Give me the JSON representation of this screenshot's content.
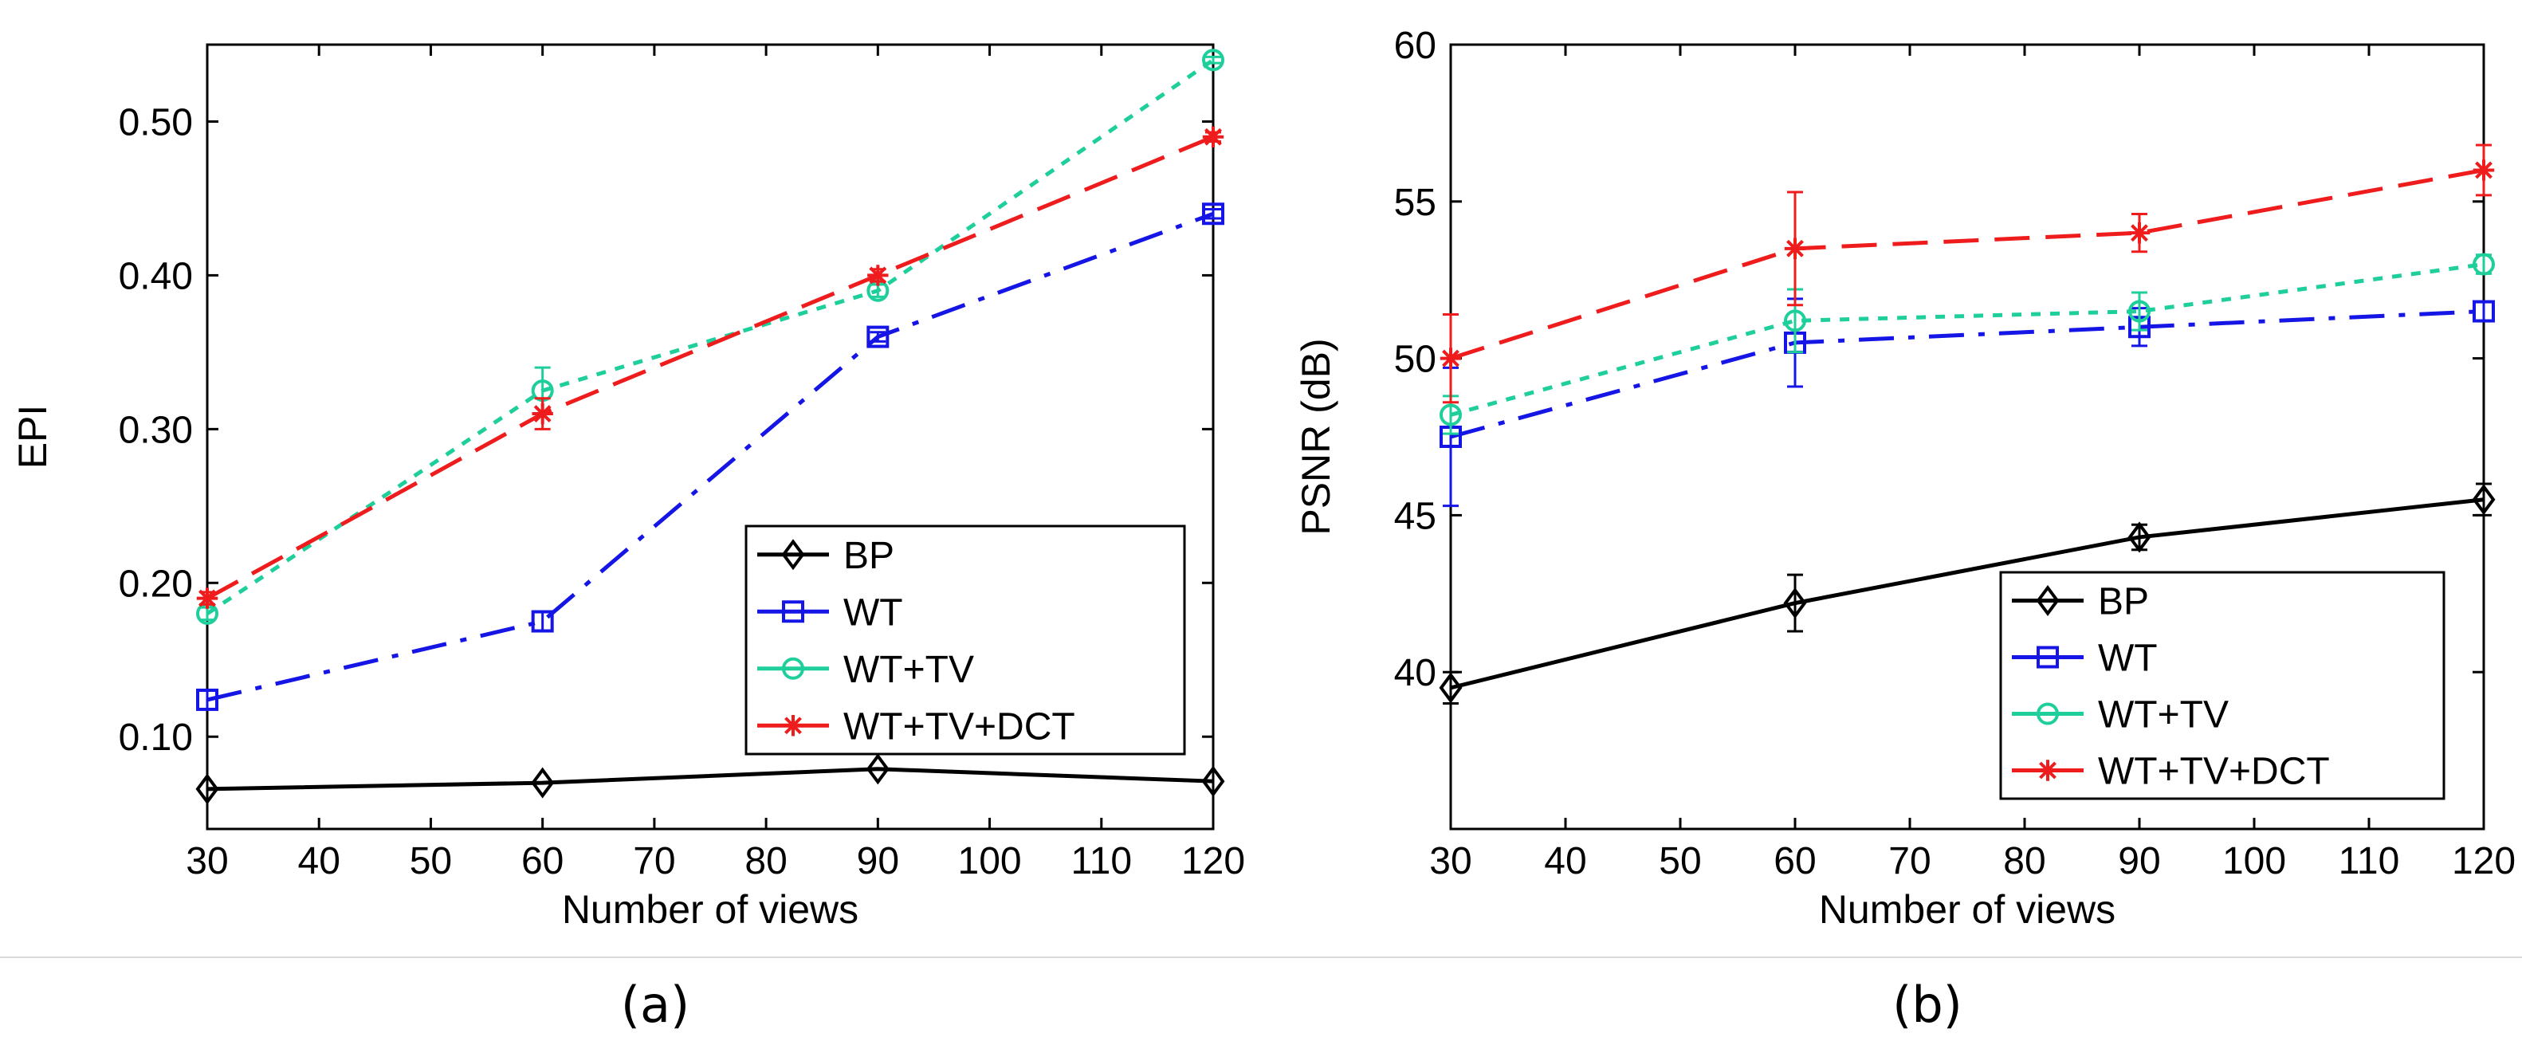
{
  "chart_data": [
    {
      "type": "line",
      "caption": "(a)",
      "title": "",
      "xlabel": "Number of views",
      "ylabel": "EPI",
      "x": [
        30,
        60,
        90,
        120
      ],
      "xlim": [
        30,
        120
      ],
      "ylim": [
        0.04,
        0.55
      ],
      "xticks": [
        30,
        40,
        50,
        60,
        70,
        80,
        90,
        100,
        110,
        120
      ],
      "yticks": [
        0.1,
        0.2,
        0.3,
        0.4,
        0.5
      ],
      "ytick_labels": [
        "0.10",
        "0.20",
        "0.30",
        "0.40",
        "0.50"
      ],
      "grid": false,
      "legend_position": "lower-right",
      "series": [
        {
          "name": "BP",
          "color": "#000000",
          "marker": "diamond",
          "dash": "solid",
          "values": [
            0.066,
            0.07,
            0.079,
            0.071
          ],
          "errors": [
            0,
            0,
            0,
            0
          ]
        },
        {
          "name": "WT",
          "color": "#1515e6",
          "marker": "square",
          "dash": "dashdot",
          "values": [
            0.124,
            0.175,
            0.36,
            0.44
          ],
          "errors": [
            0.006,
            0.006,
            0.003,
            0.003
          ]
        },
        {
          "name": "WT+TV",
          "color": "#1fcf9b",
          "marker": "circle",
          "dash": "dotted",
          "values": [
            0.18,
            0.325,
            0.39,
            0.54
          ],
          "errors": [
            0.004,
            0.015,
            0.004,
            0.002
          ]
        },
        {
          "name": "WT+TV+DCT",
          "color": "#ee1c1c",
          "marker": "star",
          "dash": "dashed",
          "values": [
            0.19,
            0.31,
            0.4,
            0.49
          ],
          "errors": [
            0.004,
            0.01,
            0.004,
            0.003
          ]
        }
      ]
    },
    {
      "type": "line",
      "caption": "(b)",
      "title": "",
      "xlabel": "Number of views",
      "ylabel": "PSNR (dB)",
      "x": [
        30,
        60,
        90,
        120
      ],
      "xlim": [
        30,
        120
      ],
      "ylim": [
        35,
        60
      ],
      "xticks": [
        30,
        40,
        50,
        60,
        70,
        80,
        90,
        100,
        110,
        120
      ],
      "yticks": [
        40,
        45,
        50,
        55,
        60
      ],
      "ytick_labels": [
        "40",
        "45",
        "50",
        "55",
        "60"
      ],
      "grid": false,
      "legend_position": "lower-right",
      "series": [
        {
          "name": "BP",
          "color": "#000000",
          "marker": "diamond",
          "dash": "solid",
          "values": [
            39.5,
            42.2,
            44.3,
            45.5
          ],
          "errors": [
            0.5,
            0.9,
            0.4,
            0.5
          ]
        },
        {
          "name": "WT",
          "color": "#1515e6",
          "marker": "square",
          "dash": "dashdot",
          "values": [
            47.5,
            50.5,
            51.0,
            51.5
          ],
          "errors": [
            2.2,
            1.4,
            0.6,
            0.3
          ]
        },
        {
          "name": "WT+TV",
          "color": "#1fcf9b",
          "marker": "circle",
          "dash": "dotted",
          "values": [
            48.2,
            51.2,
            51.5,
            53.0
          ],
          "errors": [
            0.6,
            1.0,
            0.6,
            0.3
          ]
        },
        {
          "name": "WT+TV+DCT",
          "color": "#ee1c1c",
          "marker": "star",
          "dash": "dashed",
          "values": [
            50.0,
            53.5,
            54.0,
            56.0
          ],
          "errors": [
            1.4,
            1.8,
            0.6,
            0.8
          ]
        }
      ]
    }
  ]
}
